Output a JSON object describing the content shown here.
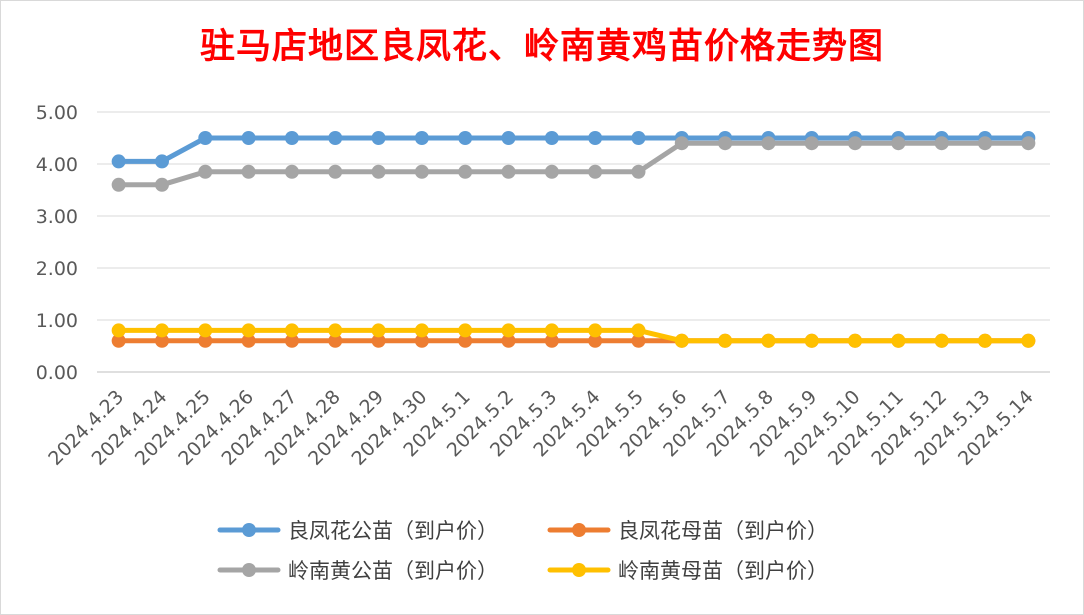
{
  "chart_data": {
    "type": "line",
    "title": "驻马店地区良凤花、岭南黄鸡苗价格走势图",
    "xlabel": "",
    "ylabel": "",
    "ylim": [
      0,
      5
    ],
    "y_ticks": [
      "0.00",
      "1.00",
      "2.00",
      "3.00",
      "4.00",
      "5.00"
    ],
    "grid": true,
    "legend_position": "bottom",
    "categories": [
      "2024.4.23",
      "2024.4.24",
      "2024.4.25",
      "2024.4.26",
      "2024.4.27",
      "2024.4.28",
      "2024.4.29",
      "2024.4.30",
      "2024.5.1",
      "2024.5.2",
      "2024.5.3",
      "2024.5.4",
      "2024.5.5",
      "2024.5.6",
      "2024.5.7",
      "2024.5.8",
      "2024.5.9",
      "2024.5.10",
      "2024.5.11",
      "2024.5.12",
      "2024.5.13",
      "2024.5.14"
    ],
    "series": [
      {
        "name": "良凤花公苗（到户价）",
        "color": "#5b9bd5",
        "values": [
          4.05,
          4.05,
          4.5,
          4.5,
          4.5,
          4.5,
          4.5,
          4.5,
          4.5,
          4.5,
          4.5,
          4.5,
          4.5,
          4.5,
          4.5,
          4.5,
          4.5,
          4.5,
          4.5,
          4.5,
          4.5,
          4.5
        ]
      },
      {
        "name": "良凤花母苗（到户价）",
        "color": "#ed7d31",
        "values": [
          0.6,
          0.6,
          0.6,
          0.6,
          0.6,
          0.6,
          0.6,
          0.6,
          0.6,
          0.6,
          0.6,
          0.6,
          0.6,
          0.6,
          0.6,
          0.6,
          0.6,
          0.6,
          0.6,
          0.6,
          0.6,
          0.6
        ]
      },
      {
        "name": "岭南黄公苗（到户价）",
        "color": "#a5a5a5",
        "values": [
          3.6,
          3.6,
          3.85,
          3.85,
          3.85,
          3.85,
          3.85,
          3.85,
          3.85,
          3.85,
          3.85,
          3.85,
          3.85,
          4.4,
          4.4,
          4.4,
          4.4,
          4.4,
          4.4,
          4.4,
          4.4,
          4.4
        ]
      },
      {
        "name": "岭南黄母苗（到户价）",
        "color": "#ffc000",
        "values": [
          0.8,
          0.8,
          0.8,
          0.8,
          0.8,
          0.8,
          0.8,
          0.8,
          0.8,
          0.8,
          0.8,
          0.8,
          0.8,
          0.6,
          0.6,
          0.6,
          0.6,
          0.6,
          0.6,
          0.6,
          0.6,
          0.6
        ]
      }
    ]
  }
}
